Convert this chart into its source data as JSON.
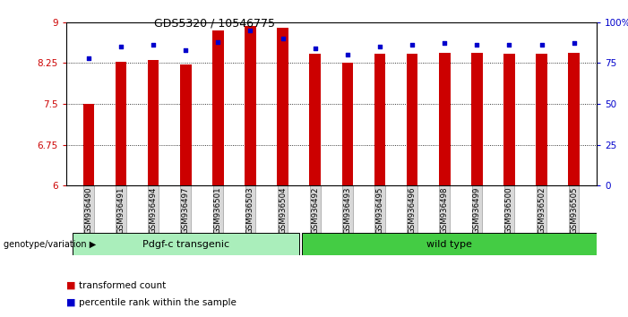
{
  "title": "GDS5320 / 10546775",
  "samples": [
    "GSM936490",
    "GSM936491",
    "GSM936494",
    "GSM936497",
    "GSM936501",
    "GSM936503",
    "GSM936504",
    "GSM936492",
    "GSM936493",
    "GSM936495",
    "GSM936496",
    "GSM936498",
    "GSM936499",
    "GSM936500",
    "GSM936502",
    "GSM936505"
  ],
  "red_values": [
    7.5,
    8.28,
    8.3,
    8.22,
    8.85,
    8.93,
    8.9,
    8.42,
    8.25,
    8.42,
    8.42,
    8.44,
    8.44,
    8.42,
    8.42,
    8.44
  ],
  "blue_values": [
    78,
    85,
    86,
    83,
    88,
    95,
    90,
    84,
    80,
    85,
    86,
    87,
    86,
    86,
    86,
    87
  ],
  "ymin": 6.0,
  "ymax": 9.0,
  "yticks_red": [
    6,
    6.75,
    7.5,
    8.25,
    9
  ],
  "yticks_blue": [
    0,
    25,
    50,
    75,
    100
  ],
  "group1_label": "Pdgf-c transgenic",
  "group2_label": "wild type",
  "group1_count": 7,
  "genotype_label": "genotype/variation",
  "legend1": "transformed count",
  "legend2": "percentile rank within the sample",
  "bar_color": "#cc0000",
  "blue_color": "#0000cc",
  "group1_color": "#aaeebb",
  "group2_color": "#44cc44",
  "bg_color": "#ffffff",
  "tick_color_red": "#cc0000",
  "tick_color_blue": "#0000cc",
  "bar_width": 0.35
}
